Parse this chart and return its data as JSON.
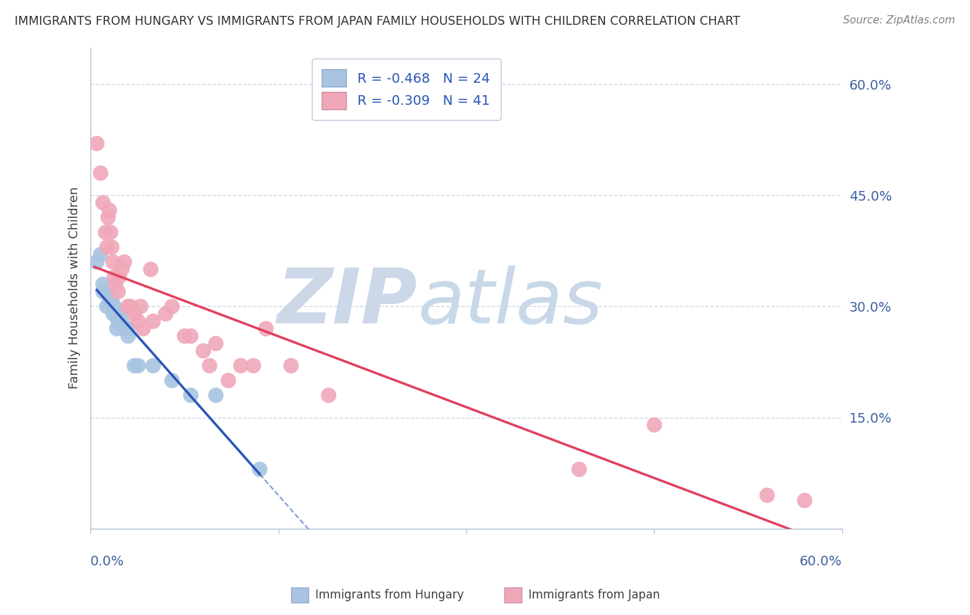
{
  "title": "IMMIGRANTS FROM HUNGARY VS IMMIGRANTS FROM JAPAN FAMILY HOUSEHOLDS WITH CHILDREN CORRELATION CHART",
  "source": "Source: ZipAtlas.com",
  "ylabel": "Family Households with Children",
  "xlim": [
    0.0,
    0.6
  ],
  "ylim": [
    0.0,
    0.65
  ],
  "yticks": [
    0.0,
    0.15,
    0.3,
    0.45,
    0.6
  ],
  "ytick_labels": [
    "",
    "15.0%",
    "30.0%",
    "45.0%",
    "60.0%"
  ],
  "xtick_labels_bottom": [
    "0.0%",
    "60.0%"
  ],
  "legend_line1": "R = -0.468   N = 24",
  "legend_line2": "R = -0.309   N = 41",
  "color_hungary": "#a8c4e0",
  "color_japan": "#f0a8b8",
  "line_color_hungary": "#2855b8",
  "line_color_japan": "#e04060",
  "watermark_zip_color": "#ccd8e8",
  "watermark_atlas_color": "#c8d8e8",
  "hungary_x": [
    0.005,
    0.008,
    0.01,
    0.01,
    0.013,
    0.015,
    0.017,
    0.018,
    0.019,
    0.02,
    0.021,
    0.022,
    0.023,
    0.025,
    0.028,
    0.03,
    0.03,
    0.035,
    0.038,
    0.05,
    0.065,
    0.08,
    0.1,
    0.135
  ],
  "hungary_y": [
    0.36,
    0.37,
    0.32,
    0.33,
    0.3,
    0.31,
    0.31,
    0.29,
    0.3,
    0.29,
    0.27,
    0.28,
    0.29,
    0.28,
    0.27,
    0.27,
    0.26,
    0.22,
    0.22,
    0.22,
    0.2,
    0.18,
    0.18,
    0.08
  ],
  "japan_x": [
    0.005,
    0.008,
    0.01,
    0.012,
    0.013,
    0.014,
    0.015,
    0.016,
    0.017,
    0.018,
    0.019,
    0.02,
    0.022,
    0.023,
    0.025,
    0.027,
    0.03,
    0.032,
    0.035,
    0.038,
    0.04,
    0.042,
    0.048,
    0.05,
    0.06,
    0.065,
    0.075,
    0.08,
    0.09,
    0.095,
    0.1,
    0.11,
    0.12,
    0.13,
    0.14,
    0.16,
    0.19,
    0.39,
    0.45,
    0.54,
    0.57
  ],
  "japan_y": [
    0.52,
    0.48,
    0.44,
    0.4,
    0.38,
    0.42,
    0.43,
    0.4,
    0.38,
    0.36,
    0.34,
    0.33,
    0.32,
    0.34,
    0.35,
    0.36,
    0.3,
    0.3,
    0.29,
    0.28,
    0.3,
    0.27,
    0.35,
    0.28,
    0.29,
    0.3,
    0.26,
    0.26,
    0.24,
    0.22,
    0.25,
    0.2,
    0.22,
    0.22,
    0.27,
    0.22,
    0.18,
    0.08,
    0.14,
    0.045,
    0.038
  ],
  "background_color": "#ffffff",
  "grid_color": "#c8d8e8",
  "spine_color": "#b0c0d0",
  "text_color": "#4060a0",
  "title_color": "#303030",
  "source_color": "#808080",
  "legend_text_color": "#2855b8"
}
